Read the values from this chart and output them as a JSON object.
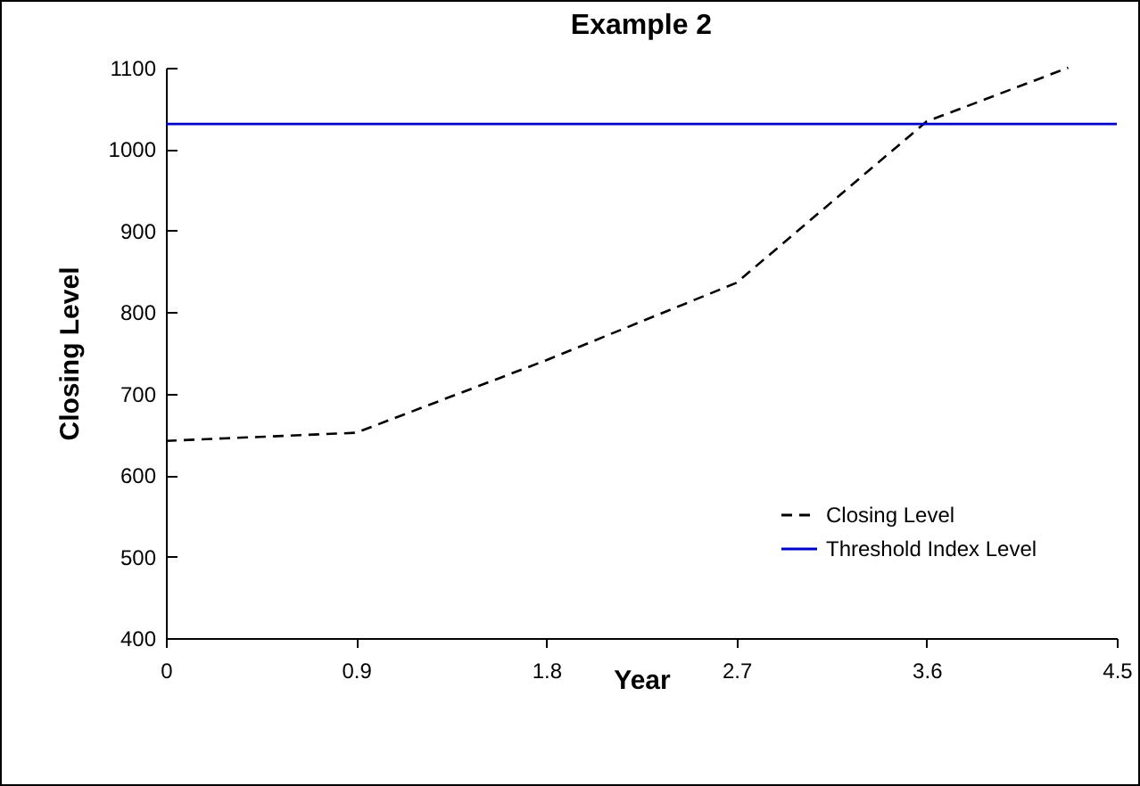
{
  "chart_data": {
    "type": "line",
    "title": "Example 2",
    "xlabel": "Year",
    "ylabel": "Closing Level",
    "xlim": [
      0,
      4.5
    ],
    "xticks": [
      0,
      0.9,
      1.8,
      2.7,
      3.6,
      4.5
    ],
    "ylim": [
      400,
      1100
    ],
    "yticks": [
      400,
      500,
      600,
      700,
      800,
      900,
      1000,
      1100
    ],
    "grid": false,
    "legend": "bottom right",
    "marker": "none",
    "series": [
      {
        "name": "Closing Level",
        "color": "#000000",
        "line_style": "dashed",
        "x": [
          0,
          0.9,
          1.8,
          2.7,
          3.6,
          4.27
        ],
        "values": [
          642,
          652,
          741,
          836,
          1034,
          1100
        ]
      },
      {
        "name": "Threshold Index Level",
        "color": "#0000cc",
        "line_style": "solid",
        "x": [
          0,
          4.5
        ],
        "values": [
          1031,
          1031
        ]
      }
    ]
  }
}
